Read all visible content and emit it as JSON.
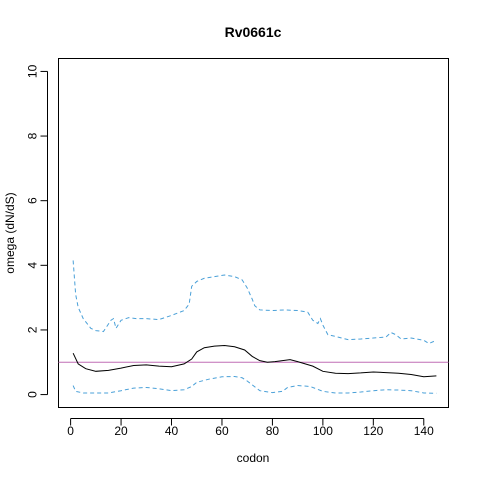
{
  "chart_data": {
    "type": "line",
    "title": "Rv0661c",
    "xlabel": "codon",
    "ylabel": "omega (dN/dS)",
    "xlim": [
      -4.8,
      149.8
    ],
    "ylim": [
      -0.4,
      10.4
    ],
    "xticks": [
      0,
      20,
      40,
      60,
      80,
      100,
      120,
      140
    ],
    "yticks": [
      0,
      2,
      4,
      6,
      8,
      10
    ],
    "reference_line": {
      "y": 1,
      "color": "#c06fb5"
    },
    "grid": false,
    "legend": "none",
    "series": [
      {
        "style": "solid",
        "color": "#000000",
        "x": [
          1,
          3,
          6,
          10,
          15,
          20,
          25,
          30,
          35,
          40,
          45,
          48,
          50,
          53,
          57,
          61,
          65,
          69,
          72,
          75,
          78,
          81,
          84,
          87,
          90,
          93,
          96,
          100,
          105,
          110,
          115,
          120,
          125,
          130,
          135,
          140,
          145
        ],
        "y": [
          1.28,
          0.95,
          0.8,
          0.72,
          0.75,
          0.82,
          0.9,
          0.92,
          0.88,
          0.86,
          0.95,
          1.1,
          1.32,
          1.45,
          1.5,
          1.52,
          1.48,
          1.38,
          1.18,
          1.05,
          1.0,
          1.02,
          1.05,
          1.08,
          1.02,
          0.95,
          0.88,
          0.72,
          0.66,
          0.65,
          0.67,
          0.7,
          0.68,
          0.66,
          0.62,
          0.55,
          0.58
        ]
      },
      {
        "style": "dashed",
        "color": "#4aa0d8",
        "x": [
          1,
          2,
          3,
          5,
          8,
          10,
          13,
          16,
          17,
          18,
          20,
          23,
          26,
          30,
          35,
          40,
          45,
          47,
          48,
          50,
          53,
          57,
          61,
          65,
          68,
          70,
          72,
          73,
          75,
          80,
          85,
          90,
          94,
          96,
          98,
          99,
          100,
          102,
          105,
          110,
          115,
          120,
          125,
          127,
          129,
          131,
          135,
          140,
          142,
          145
        ],
        "y": [
          4.15,
          3.1,
          2.7,
          2.35,
          2.05,
          1.98,
          1.95,
          2.3,
          2.35,
          2.05,
          2.3,
          2.38,
          2.35,
          2.35,
          2.32,
          2.45,
          2.6,
          2.8,
          3.35,
          3.5,
          3.6,
          3.65,
          3.7,
          3.65,
          3.55,
          3.3,
          2.95,
          2.75,
          2.62,
          2.6,
          2.62,
          2.6,
          2.55,
          2.3,
          2.2,
          2.35,
          2.15,
          1.85,
          1.8,
          1.7,
          1.72,
          1.75,
          1.78,
          1.92,
          1.85,
          1.72,
          1.75,
          1.68,
          1.58,
          1.68
        ]
      },
      {
        "style": "dashed",
        "color": "#4aa0d8",
        "x": [
          1,
          2,
          5,
          10,
          15,
          20,
          25,
          30,
          35,
          40,
          45,
          48,
          50,
          55,
          60,
          65,
          68,
          70,
          72,
          75,
          80,
          84,
          86,
          90,
          95,
          100,
          105,
          110,
          115,
          120,
          125,
          130,
          135,
          140,
          145
        ],
        "y": [
          0.28,
          0.1,
          0.05,
          0.05,
          0.05,
          0.12,
          0.2,
          0.22,
          0.18,
          0.12,
          0.15,
          0.25,
          0.38,
          0.48,
          0.55,
          0.56,
          0.52,
          0.42,
          0.3,
          0.12,
          0.06,
          0.1,
          0.22,
          0.28,
          0.25,
          0.1,
          0.05,
          0.05,
          0.08,
          0.12,
          0.15,
          0.14,
          0.12,
          0.05,
          0.04
        ]
      }
    ]
  }
}
